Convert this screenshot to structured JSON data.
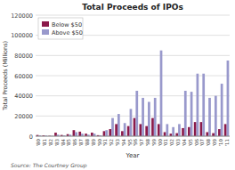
{
  "chart_data": {
    "type": "bar",
    "title": "Total Proceeds of IPOs",
    "x_label": "Year",
    "y_label": "Total Proceeds (Millions)",
    "annotations": [
      "Source: The Courtney Group"
    ],
    "categories": [
      "'80",
      "'81",
      "'82",
      "'83",
      "'84",
      "'85",
      "'86",
      "'87",
      "'88",
      "'89",
      "'90",
      "'91",
      "'92",
      "'93",
      "'94",
      "'95",
      "'96",
      "'97",
      "'98",
      "'99",
      "'00",
      "'01",
      "'02",
      "'03",
      "'04",
      "'05",
      "'06",
      "'07",
      "'08",
      "'09",
      "'10",
      "'11"
    ],
    "series": [
      {
        "name": "Below $50",
        "color": "#8B1A4A",
        "values": [
          1200,
          800,
          400,
          3500,
          1200,
          2000,
          6000,
          4500,
          2500,
          3500,
          1000,
          5000,
          7000,
          12000,
          5000,
          10000,
          18000,
          12000,
          10000,
          18000,
          12000,
          4000,
          2500,
          3000,
          8000,
          9000,
          14000,
          14000,
          4000,
          3000,
          7000,
          12000
        ]
      },
      {
        "name": "Above $50",
        "color": "#9999CC",
        "values": [
          800,
          600,
          300,
          1500,
          800,
          1500,
          4000,
          2500,
          1500,
          2500,
          800,
          6000,
          18000,
          22000,
          13000,
          27000,
          45000,
          38000,
          34000,
          38000,
          85000,
          12000,
          9000,
          12000,
          45000,
          44000,
          62000,
          62000,
          38000,
          40000,
          52000,
          75000
        ]
      }
    ],
    "ylim": [
      0,
      120000
    ],
    "yticks": [
      0,
      20000,
      40000,
      60000,
      80000,
      100000,
      120000
    ],
    "grid": true,
    "legend": "upper left"
  }
}
